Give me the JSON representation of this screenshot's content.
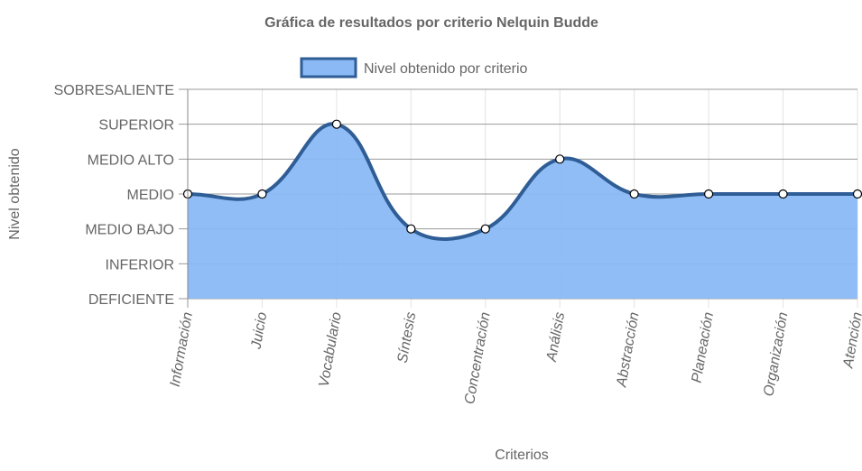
{
  "chart_data": {
    "type": "area",
    "title": "Gráfica de resultados por criterio Nelquin Budde",
    "x_label": "Criterios",
    "y_label": "Nivel obtenido",
    "categories": [
      "Información",
      "Juicio",
      "Vocabulario",
      "Síntesis",
      "Concentración",
      "Análisis",
      "Abstracción",
      "Planeación",
      "Organización",
      "Atención"
    ],
    "series": [
      {
        "name": "Nivel obtenido por criterio",
        "color": "#2f5d95",
        "fill": "#8ab9f5",
        "values": [
          4,
          4,
          6,
          3,
          3,
          5,
          4,
          4,
          4,
          4
        ]
      }
    ],
    "ylim": [
      1,
      7
    ],
    "yticks": [
      {
        "value": 1,
        "label": "DEFICIENTE"
      },
      {
        "value": 2,
        "label": "INFERIOR"
      },
      {
        "value": 3,
        "label": "MEDIO BAJO"
      },
      {
        "value": 4,
        "label": "MEDIO"
      },
      {
        "value": 5,
        "label": "MEDIO ALTO"
      },
      {
        "value": 6,
        "label": "SUPERIOR"
      },
      {
        "value": 7,
        "label": "SOBRESALIENTE"
      }
    ],
    "grid": true,
    "legend": "top"
  }
}
